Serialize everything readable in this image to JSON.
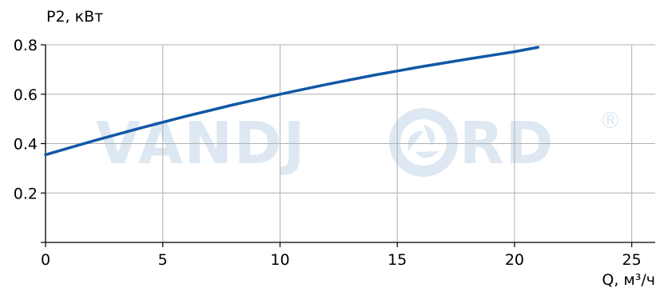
{
  "chart_data": {
    "type": "line",
    "ylabel": "P2, кВт",
    "xlabel": "Q, м³/ч",
    "xlim": [
      0,
      26
    ],
    "ylim": [
      0,
      0.8
    ],
    "xticks": [
      0,
      5,
      10,
      15,
      20,
      25
    ],
    "yticks": [
      0.2,
      0.4,
      0.6,
      0.8
    ],
    "xtick_labels": [
      "0",
      "5",
      "10",
      "15",
      "20",
      "25"
    ],
    "ytick_labels": [
      "0.2",
      "0.4",
      "0.6",
      "0.8"
    ],
    "grid": true,
    "series": [
      {
        "color": "#1157a6",
        "x": [
          0,
          2,
          4,
          6,
          8,
          10,
          12,
          14,
          16,
          18,
          20,
          21
        ],
        "y": [
          0.355,
          0.41,
          0.462,
          0.511,
          0.557,
          0.6,
          0.64,
          0.677,
          0.711,
          0.742,
          0.772,
          0.79
        ]
      }
    ],
    "watermark": "VANDJORD",
    "watermark_mark": "®",
    "watermark_color": "#dde8f2"
  }
}
